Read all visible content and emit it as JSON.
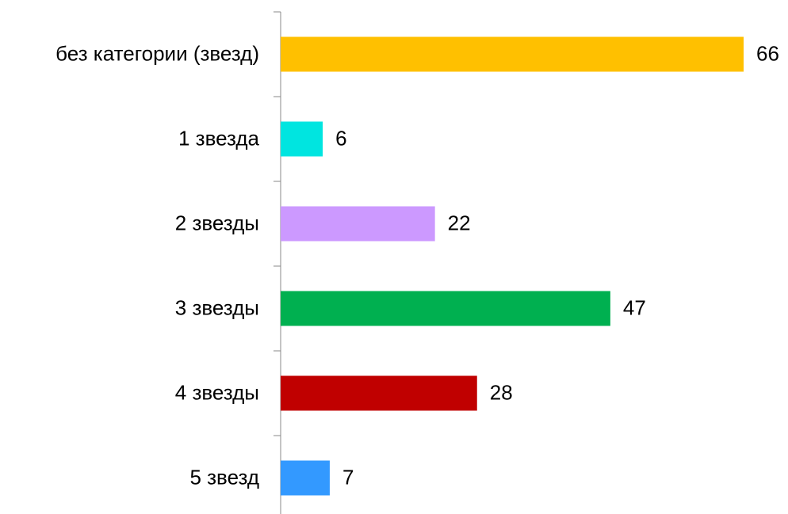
{
  "chart_data": {
    "type": "bar",
    "orientation": "horizontal",
    "categories": [
      "без категории (звезд)",
      "1 звезда",
      "2 звезды",
      "3 звезды",
      "4 звезды",
      "5 звезд"
    ],
    "values": [
      66,
      6,
      22,
      47,
      28,
      7
    ],
    "colors": [
      "#FFC000",
      "#00E5E0",
      "#CC99FF",
      "#00B050",
      "#C00000",
      "#3399FF"
    ]
  }
}
